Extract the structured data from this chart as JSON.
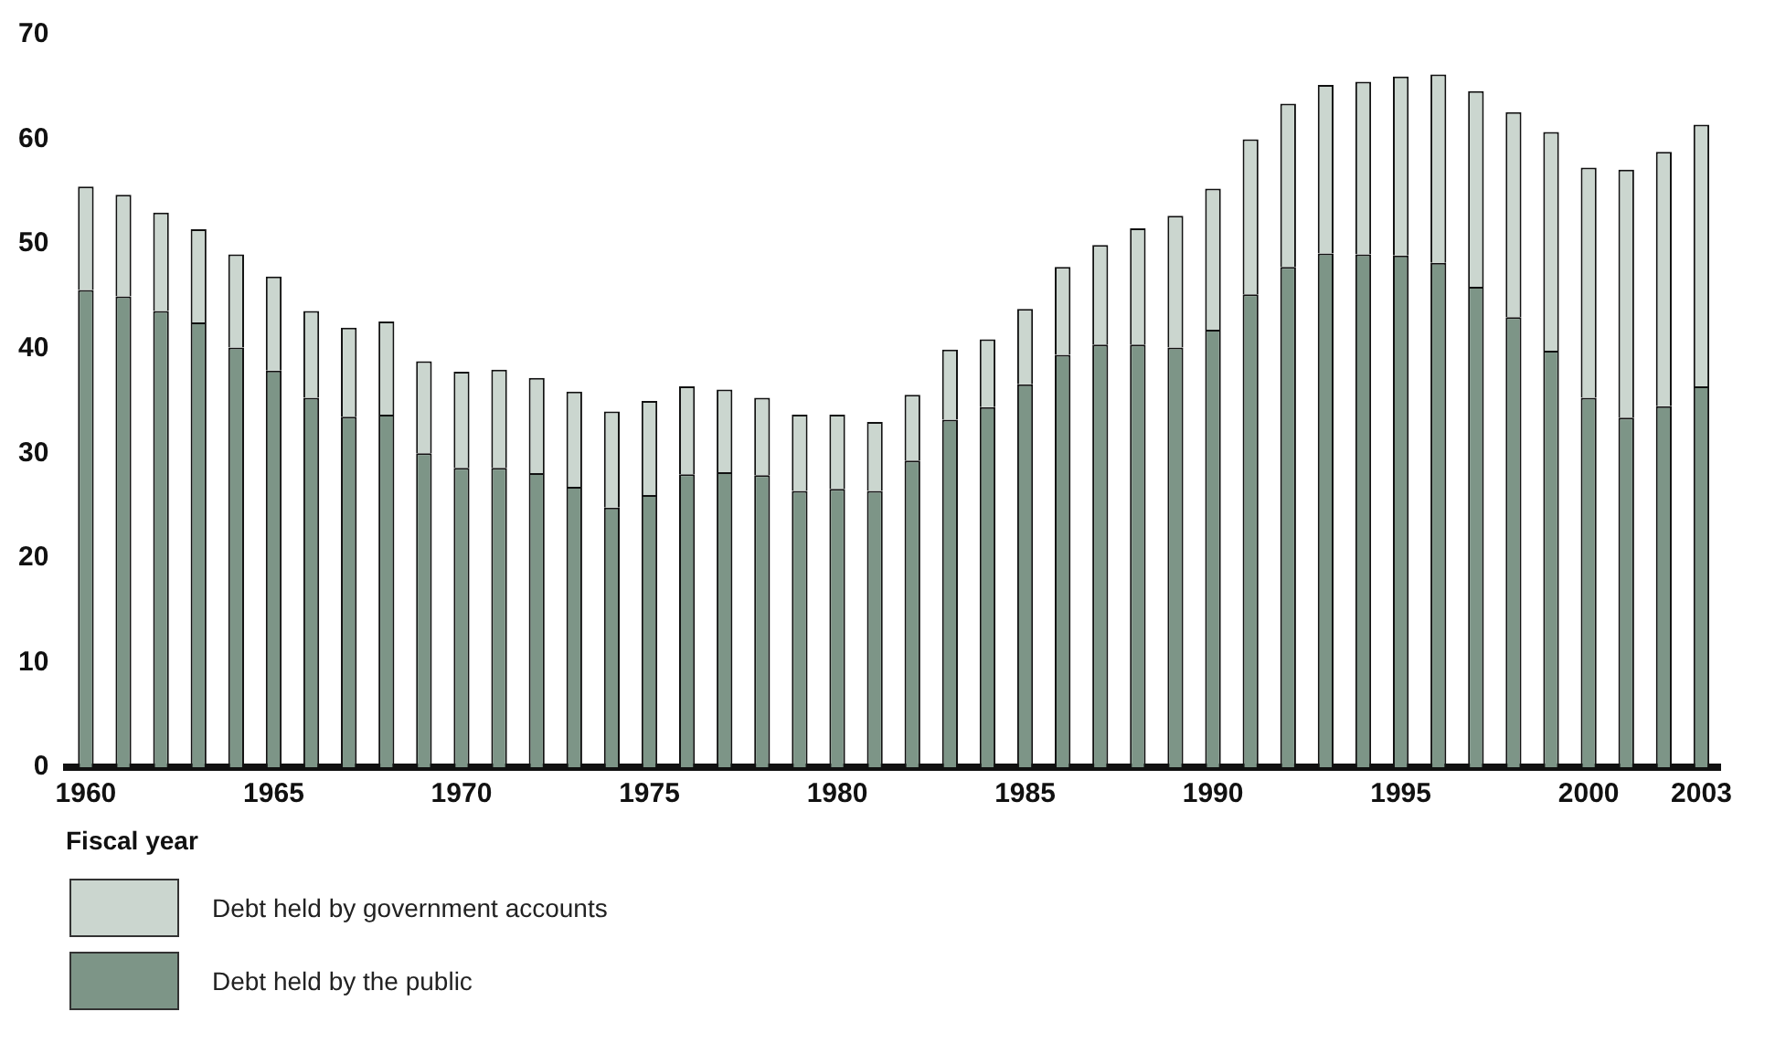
{
  "chart_data": {
    "type": "bar",
    "stacked": true,
    "xlabel": "Fiscal year",
    "categories": [
      "1960",
      null,
      null,
      null,
      null,
      "1965",
      null,
      null,
      null,
      null,
      "1970",
      null,
      null,
      null,
      null,
      "1975",
      null,
      null,
      null,
      null,
      "1980",
      null,
      null,
      null,
      null,
      "1985",
      null,
      null,
      null,
      null,
      "1990",
      null,
      null,
      null,
      null,
      "1995",
      null,
      null,
      null,
      null,
      "2000",
      null,
      null,
      "2003"
    ],
    "series": [
      {
        "name": "Debt held by the public",
        "color": "#7d9587",
        "values": [
          45.6,
          45.0,
          43.6,
          42.5,
          40.1,
          37.9,
          35.3,
          33.5,
          33.7,
          30.0,
          28.6,
          28.6,
          28.1,
          26.8,
          24.8,
          26.0,
          28.0,
          28.2,
          27.9,
          26.4,
          26.6,
          26.4,
          29.3,
          33.2,
          34.4,
          36.6,
          39.4,
          40.4,
          40.4,
          40.1,
          41.8,
          45.2,
          47.8,
          49.1,
          49.0,
          48.9,
          48.2,
          45.9,
          43.0,
          39.8,
          35.3,
          33.4,
          34.5,
          36.4
        ]
      },
      {
        "name": "Debt held by government accounts",
        "color": "#cbd6cf",
        "values": [
          9.9,
          9.7,
          9.4,
          8.9,
          8.9,
          9.0,
          8.3,
          8.5,
          8.9,
          8.8,
          9.2,
          9.4,
          9.1,
          9.1,
          9.2,
          9.0,
          8.4,
          7.9,
          7.4,
          7.3,
          7.1,
          6.6,
          6.3,
          6.7,
          6.5,
          7.2,
          8.4,
          9.5,
          11.1,
          12.6,
          13.5,
          14.8,
          15.6,
          16.1,
          16.5,
          17.1,
          18.0,
          18.7,
          19.6,
          20.9,
          22.0,
          23.7,
          24.3,
          25.0
        ]
      }
    ],
    "ylim": [
      0,
      70
    ],
    "yticks": [
      0,
      10,
      20,
      30,
      40,
      50,
      60,
      70
    ],
    "grid": false,
    "legend": "bottom left"
  }
}
